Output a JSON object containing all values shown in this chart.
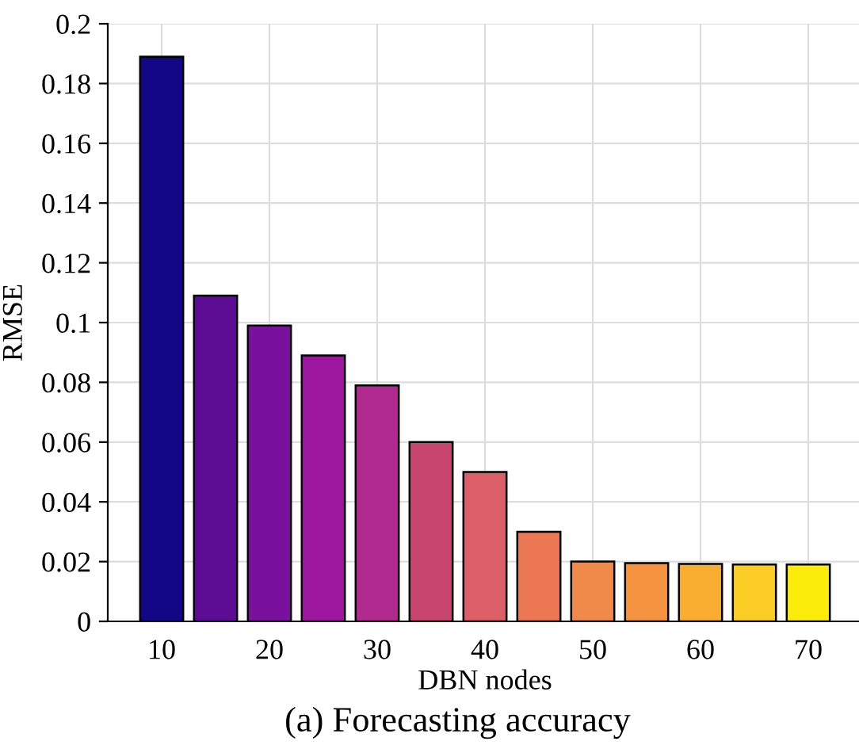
{
  "chart_data": {
    "type": "bar",
    "title": "(a) Forecasting accuracy",
    "xlabel": "DBN nodes",
    "ylabel": "RMSE",
    "x": [
      10,
      15,
      20,
      25,
      30,
      35,
      40,
      45,
      50,
      55,
      60,
      65,
      70
    ],
    "values": [
      0.189,
      0.109,
      0.099,
      0.089,
      0.079,
      0.06,
      0.05,
      0.03,
      0.02,
      0.0195,
      0.0192,
      0.019,
      0.019
    ],
    "colors": [
      "#140786",
      "#5c0d94",
      "#7a119c",
      "#9c179e",
      "#b12a8f",
      "#c8456f",
      "#dc5e66",
      "#ec7853",
      "#f08a4b",
      "#f49340",
      "#f9ad30",
      "#fcce25",
      "#fbec0c"
    ],
    "xlim": [
      5,
      75
    ],
    "xticks": [
      10,
      20,
      30,
      40,
      50,
      60,
      70
    ],
    "ylim": [
      0,
      0.2
    ],
    "yticks": [
      0,
      0.02,
      0.04,
      0.06,
      0.08,
      0.1,
      0.12,
      0.14,
      0.16,
      0.18,
      0.2
    ],
    "grid": true
  }
}
